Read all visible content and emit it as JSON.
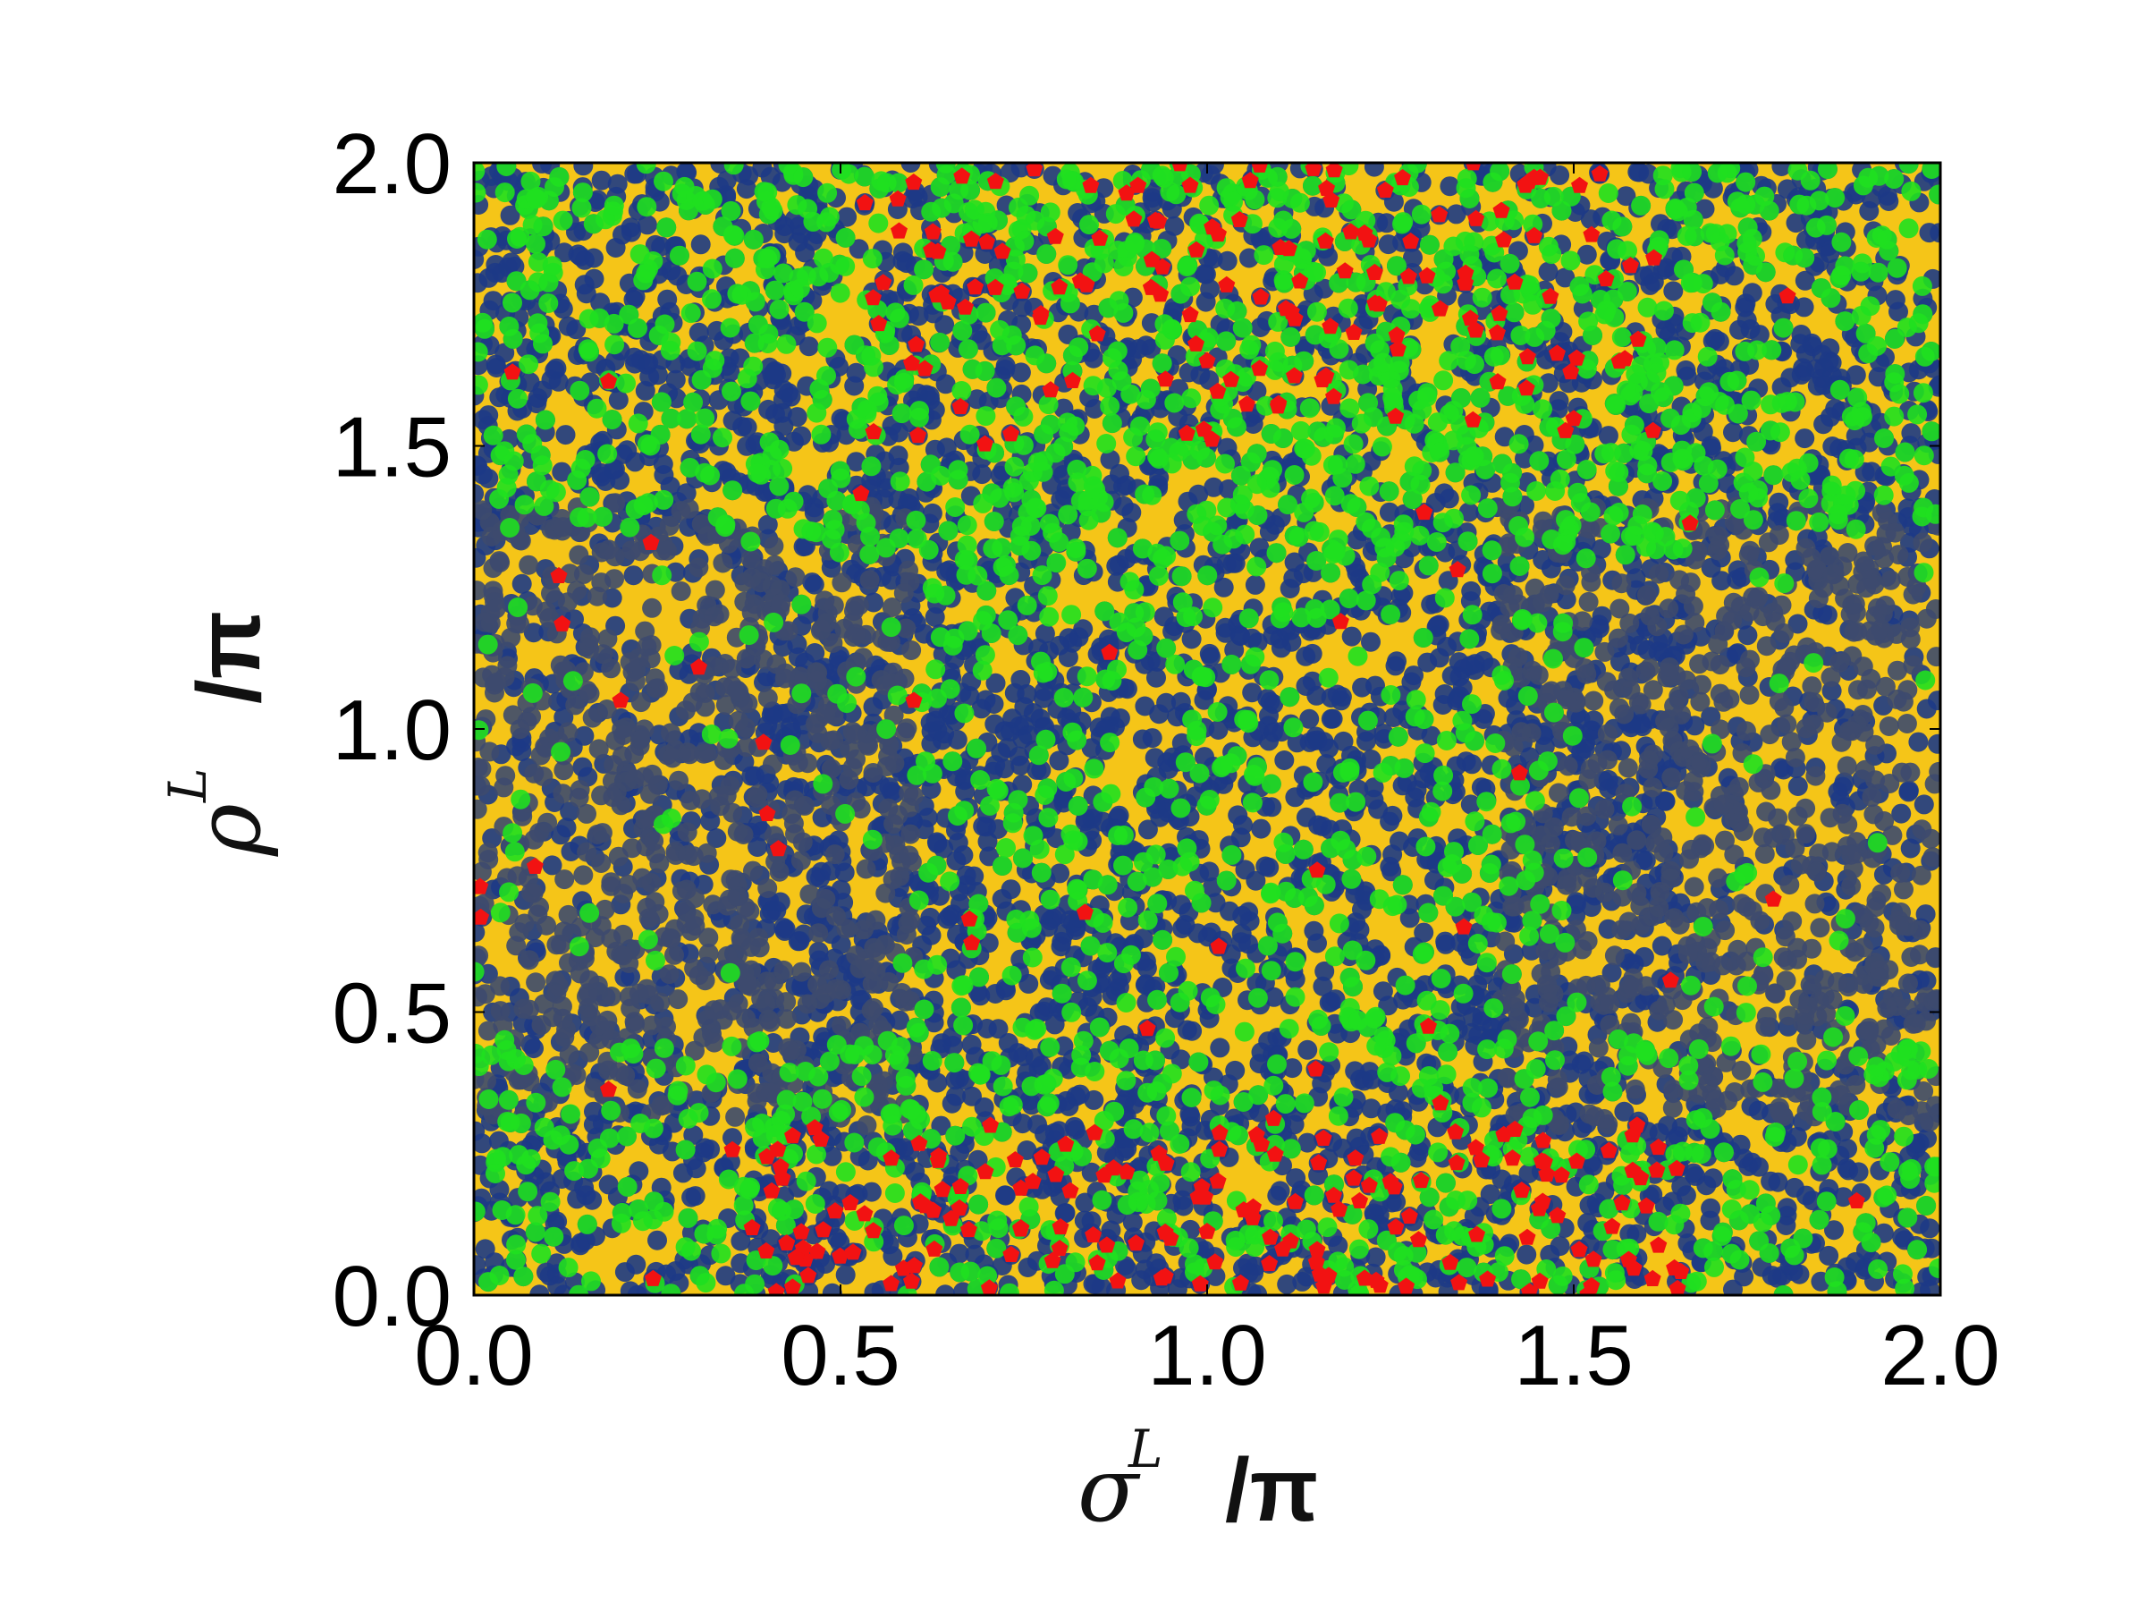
{
  "chart_data": {
    "type": "scatter",
    "title": "",
    "xlabel": {
      "symbol": "σ",
      "superscript": "L",
      "unit": "/π"
    },
    "ylabel": {
      "symbol": "ρ",
      "superscript": "L",
      "unit": "/π"
    },
    "xlim": [
      0.0,
      2.0
    ],
    "ylim": [
      0.0,
      2.0
    ],
    "xticks": [
      "0.0",
      "0.5",
      "1.0",
      "1.5",
      "2.0"
    ],
    "yticks": [
      "0.0",
      "0.5",
      "1.0",
      "1.5",
      "2.0"
    ],
    "xtick_values": [
      0.0,
      0.5,
      1.0,
      1.5,
      2.0
    ],
    "ytick_values": [
      0.0,
      0.5,
      1.0,
      1.5,
      2.0
    ],
    "grid": false,
    "legend": "none",
    "colors": {
      "background_fill": "#f5c518",
      "blue_points": "#1d3a86",
      "gray_points": "#3d4a6e",
      "green_points": "#1fe01f",
      "red_points": "#f21212"
    },
    "series": [
      {
        "color_key": "blue_points",
        "marker": "circle",
        "distribution": "fills plot densely, dense everywhere"
      },
      {
        "color_key": "gray_points",
        "marker": "circle",
        "distribution": "left and right sides around ρ 0.3–1.4"
      },
      {
        "color_key": "green_points",
        "marker": "circle",
        "distribution": "concentrated near ρ 0–0.4 and 1.4–2.0, with a central lobe around σ 0.8–1.4"
      },
      {
        "color_key": "red_points",
        "marker": "pentagon",
        "distribution": "concentrated near σ 0.6–1.5 at ρ 0–0.3 and 1.5–2.0"
      }
    ],
    "representative_points": {
      "red": [
        [
          0.95,
          0.1
        ],
        [
          1.05,
          0.15
        ],
        [
          1.15,
          0.08
        ],
        [
          1.25,
          0.2
        ],
        [
          0.8,
          0.12
        ],
        [
          1.1,
          1.85
        ],
        [
          1.2,
          1.7
        ],
        [
          0.9,
          1.9
        ],
        [
          1.0,
          1.65
        ],
        [
          1.3,
          1.8
        ],
        [
          0.2,
          1.05
        ],
        [
          0.4,
          0.85
        ],
        [
          1.15,
          0.75
        ],
        [
          1.35,
          0.65
        ],
        [
          0.6,
          1.05
        ]
      ]
    }
  }
}
